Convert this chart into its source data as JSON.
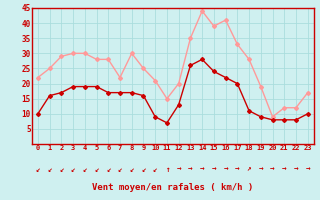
{
  "hours": [
    0,
    1,
    2,
    3,
    4,
    5,
    6,
    7,
    8,
    9,
    10,
    11,
    12,
    13,
    14,
    15,
    16,
    17,
    18,
    19,
    20,
    21,
    22,
    23
  ],
  "wind_avg": [
    10,
    16,
    17,
    19,
    19,
    19,
    17,
    17,
    17,
    16,
    9,
    7,
    13,
    26,
    28,
    24,
    22,
    20,
    11,
    9,
    8,
    8,
    8,
    10
  ],
  "wind_gust": [
    22,
    25,
    29,
    30,
    30,
    28,
    28,
    22,
    30,
    25,
    21,
    15,
    20,
    35,
    44,
    39,
    41,
    33,
    28,
    19,
    9,
    12,
    12,
    17
  ],
  "color_avg": "#cc0000",
  "color_gust": "#ff9999",
  "bg_color": "#cff0f0",
  "grid_color": "#aadddd",
  "xlabel": "Vent moyen/en rafales ( km/h )",
  "xlabel_color": "#cc0000",
  "tick_color": "#cc0000",
  "ylim": [
    0,
    45
  ],
  "yticks": [
    5,
    10,
    15,
    20,
    25,
    30,
    35,
    40,
    45
  ],
  "marker": "D",
  "marker_size": 2,
  "line_width": 1.0,
  "arrow_chars": [
    "↙",
    "↙",
    "↙",
    "↙",
    "↙",
    "↙",
    "↙",
    "↙",
    "↙",
    "↙",
    "↙",
    "↑",
    "→",
    "→",
    "→",
    "→",
    "→",
    "→",
    "↗",
    "→",
    "→",
    "→",
    "→",
    "→"
  ]
}
